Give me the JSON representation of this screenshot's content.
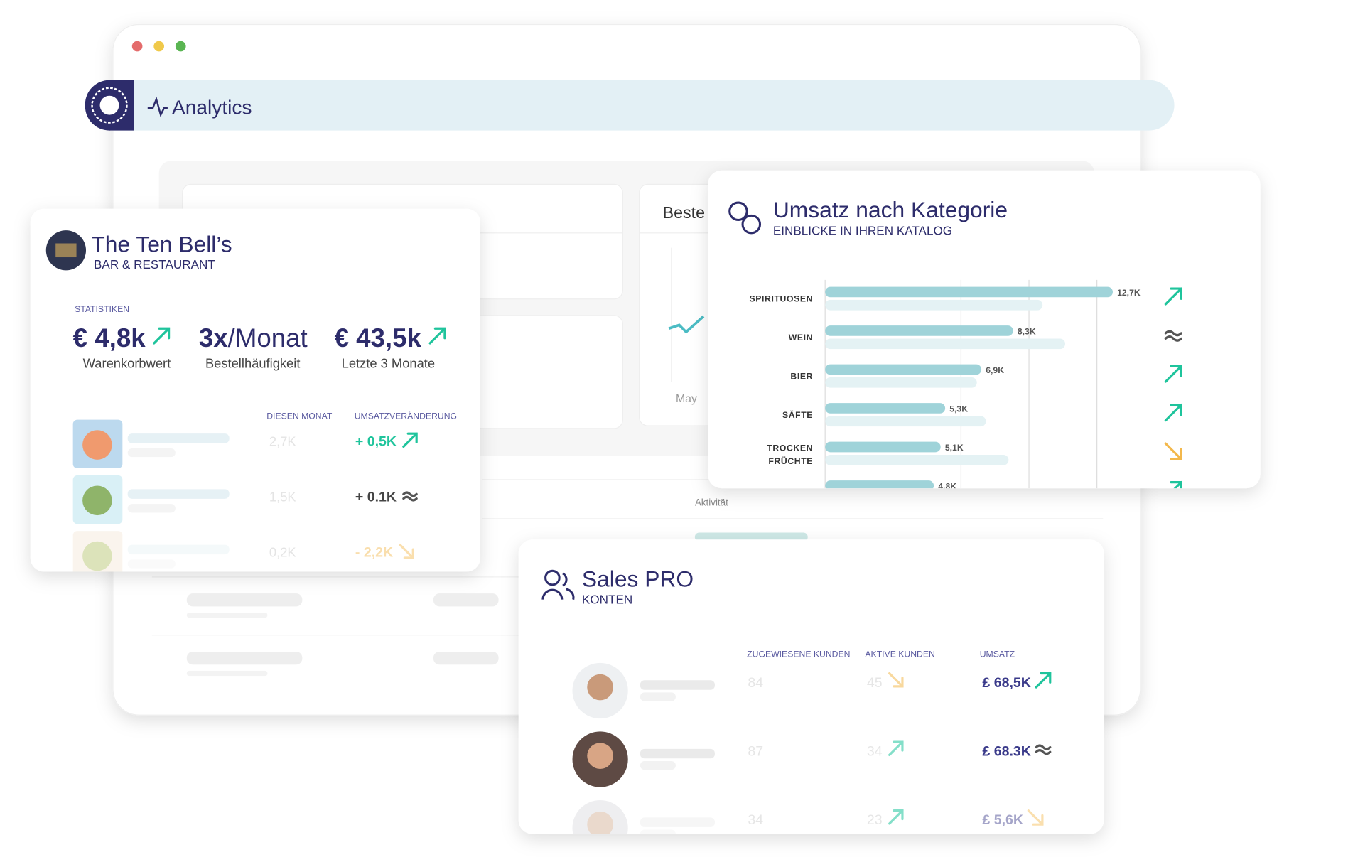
{
  "window": {
    "title": "Analytics"
  },
  "background": {
    "card_title": "Beste",
    "axis_label": "May",
    "column_label": "Aktivität"
  },
  "restaurant_card": {
    "title": "The Ten Bell’s",
    "subtitle": "BAR & RESTAURANT",
    "stats_label": "STATISTIKEN",
    "stats": [
      {
        "value": "€ 4,8k",
        "trend": "up",
        "label": "Warenkorbwert"
      },
      {
        "value": "3x",
        "unit": "/Monat",
        "label": "Bestellhäufigkeit"
      },
      {
        "value": "€ 43,5k",
        "trend": "up",
        "label": "Letzte 3 Monate"
      }
    ],
    "columns": [
      "DIESEN MONAT",
      "UMSATZVERÄNDERUNG"
    ],
    "rows": [
      {
        "this_month": "2,7K",
        "change": "+ 0,5K",
        "trend": "up"
      },
      {
        "this_month": "1,5K",
        "change": "+ 0.1K",
        "trend": "flat"
      },
      {
        "this_month": "0,2K",
        "change": "- 2,2K",
        "trend": "down"
      }
    ]
  },
  "category_card": {
    "title": "Umsatz nach Kategorie",
    "subtitle": "EINBLICKE IN IHREN KATALOG",
    "chart": {
      "type": "bar",
      "categories": [
        [
          "SPIRITUOSEN"
        ],
        [
          "WEIN"
        ],
        [
          "BIER"
        ],
        [
          "SÄFTE"
        ],
        [
          "TROCKEN",
          "FRÜCHTE"
        ],
        null
      ],
      "values": [
        12.7,
        8.3,
        6.9,
        5.3,
        5.1,
        4.8
      ],
      "value_labels": [
        "12,7K",
        "8,3K",
        "6,9K",
        "5,3K",
        "5,1K",
        "4.8K"
      ],
      "comparison": [
        9.6,
        10.6,
        6.7,
        7.1,
        8.1,
        null
      ],
      "trends": [
        "up",
        "flat",
        "up",
        "up",
        "down",
        "up"
      ],
      "xlim": [
        0,
        13
      ],
      "xticks": [
        6,
        9,
        12
      ],
      "grid": true,
      "color": "#9fd3d9",
      "comparison_color": "#e4f2f4"
    }
  },
  "sales_card": {
    "title": "Sales PRO",
    "subtitle": "KONTEN",
    "columns": [
      "ZUGEWIESENE KUNDEN",
      "AKTIVE KUNDEN",
      "UMSATZ"
    ],
    "rows": [
      {
        "assigned": "84",
        "active": "45",
        "active_trend": "down",
        "revenue": "£ 68,5K",
        "revenue_trend": "up"
      },
      {
        "assigned": "87",
        "active": "34",
        "active_trend": "up",
        "revenue": "£ 68.3K",
        "revenue_trend": "flat"
      },
      {
        "assigned": "34",
        "active": "23",
        "active_trend": "up",
        "revenue": "£ 5,6K",
        "revenue_trend": "down"
      }
    ]
  },
  "trend_colors": {
    "up": "#1fc49c",
    "flat": "#555555",
    "down": "#f3b84c"
  }
}
